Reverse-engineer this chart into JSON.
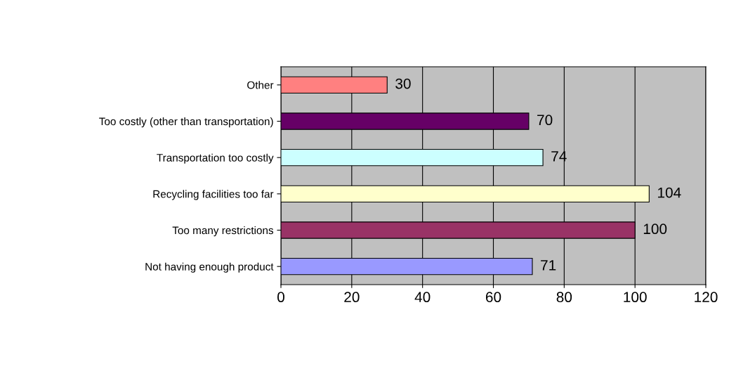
{
  "chart_data": {
    "type": "bar",
    "orientation": "horizontal",
    "categories": [
      "Other",
      "Too costly (other than transportation)",
      "Transportation too costly",
      "Recycling facilities too far",
      "Too many restrictions",
      "Not having enough product"
    ],
    "values": [
      30,
      70,
      74,
      104,
      100,
      71
    ],
    "colors": [
      "#ff8080",
      "#660066",
      "#ccffff",
      "#ffffcc",
      "#993366",
      "#9999ff"
    ],
    "xlim": [
      0,
      120
    ],
    "xticks": [
      0,
      20,
      40,
      60,
      80,
      100,
      120
    ],
    "grid": "x",
    "data_labels": true
  }
}
